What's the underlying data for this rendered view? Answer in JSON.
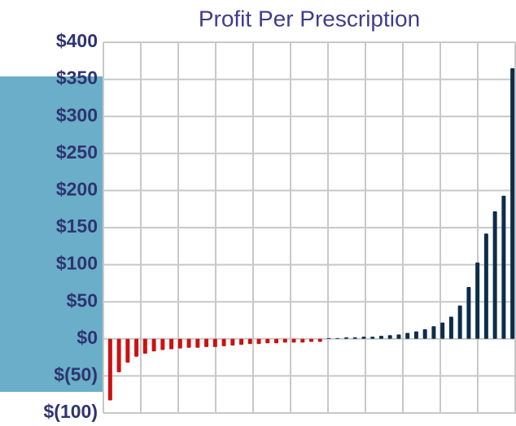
{
  "chart_data": {
    "type": "bar",
    "title": "Profit Per Prescription",
    "values": [
      -83,
      -45,
      -32,
      -24,
      -20,
      -17,
      -15,
      -14,
      -13,
      -12,
      -12,
      -11,
      -11,
      -10,
      -9,
      -8,
      -7,
      -7,
      -6,
      -6,
      -5,
      -5,
      -5,
      -4,
      -4,
      1,
      1,
      2,
      2,
      3,
      3,
      4,
      5,
      6,
      8,
      10,
      13,
      17,
      22,
      30,
      45,
      70,
      103,
      142,
      172,
      193,
      365
    ],
    "color": "#0d2d4a",
    "negative_color": "#cc1111",
    "ylim": [
      -100,
      400
    ],
    "yticks": [
      {
        "value": -100,
        "label": "$(100)"
      },
      {
        "value": -50,
        "label": "$(50)"
      },
      {
        "value": 0,
        "label": "$0"
      },
      {
        "value": 50,
        "label": "$50"
      },
      {
        "value": 100,
        "label": "$100"
      },
      {
        "value": 150,
        "label": "$150"
      },
      {
        "value": 200,
        "label": "$200"
      },
      {
        "value": 250,
        "label": "$250"
      },
      {
        "value": 300,
        "label": "$300"
      },
      {
        "value": 350,
        "label": "$350"
      },
      {
        "value": 400,
        "label": "$400"
      }
    ],
    "grid": true
  }
}
